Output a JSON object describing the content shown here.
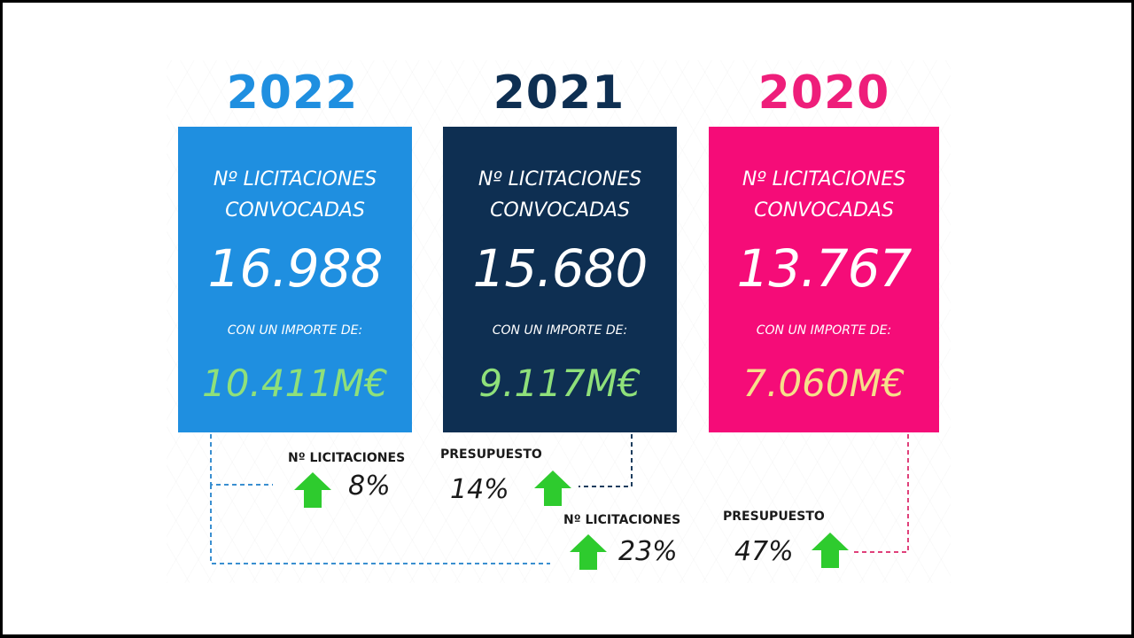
{
  "years": [
    {
      "year": "2022",
      "color": "#1f8fe0",
      "card_color": "#1f8fe0",
      "label_line1": "Nº LICITACIONES",
      "label_line2": "CONVOCADAS",
      "count": "16.988",
      "sub": "CON UN IMPORTE DE:",
      "amount": "10.411M€",
      "amount_color": "#8fe07a"
    },
    {
      "year": "2021",
      "color": "#0e2f52",
      "card_color": "#0e2f52",
      "label_line1": "Nº LICITACIONES",
      "label_line2": "CONVOCADAS",
      "count": "15.680",
      "sub": "CON UN IMPORTE DE:",
      "amount": "9.117M€",
      "amount_color": "#8fe07a"
    },
    {
      "year": "2020",
      "color": "#ee1e7a",
      "card_color": "#f50c78",
      "label_line1": "Nº LICITACIONES",
      "label_line2": "CONVOCADAS",
      "count": "13.767",
      "sub": "CON UN IMPORTE DE:",
      "amount": "7.060M€",
      "amount_color": "#f6e08a"
    }
  ],
  "comparisons": [
    {
      "label": "Nº LICITACIONES",
      "value": "8%",
      "direction": "up"
    },
    {
      "label": "PRESUPUESTO",
      "value": "14%",
      "direction": "up"
    },
    {
      "label": "Nº LICITACIONES",
      "value": "23%",
      "direction": "up"
    },
    {
      "label": "PRESUPUESTO",
      "value": "47%",
      "direction": "up"
    }
  ],
  "colors": {
    "arrow": "#2ecb2e",
    "line_blue": "#3a8fd0",
    "line_navy": "#1c3d5e",
    "line_pink": "#e0407a"
  }
}
